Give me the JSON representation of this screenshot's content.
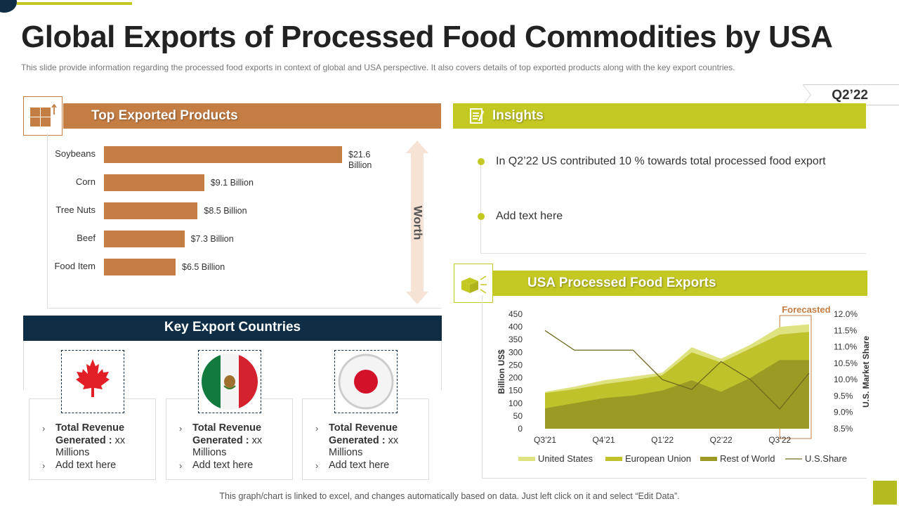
{
  "title": "Global Exports of Processed Food Commodities by USA",
  "subtitle": "This slide provide  information  regarding  the processed food exports in context of global and USA perspective. It also covers details of top exported products along with the key export countries.",
  "quarter": "Q2’22",
  "products": {
    "heading": "Top Exported Products",
    "worth_label": "Worth",
    "items": [
      {
        "name": "Soybeans",
        "value": 21.6,
        "label": "$21.6 Billion"
      },
      {
        "name": "Corn",
        "value": 9.1,
        "label": "$9.1 Billion"
      },
      {
        "name": "Tree Nuts",
        "value": 8.5,
        "label": "$8.5  Billion"
      },
      {
        "name": "Beef",
        "value": 7.3,
        "label": "$7.3 Billion"
      },
      {
        "name": "Food Item",
        "value": 6.5,
        "label": "$6.5 Billion"
      }
    ]
  },
  "insights": {
    "heading": "Insights",
    "items": [
      "In Q2’22 US contributed  10 % towards total processed food export",
      "Add text here"
    ]
  },
  "exports": {
    "heading": "USA Processed Food Exports",
    "forecast_label": "Forecasted"
  },
  "countries": {
    "heading": "Key Export Countries",
    "cards": [
      {
        "country": "Canada",
        "line1": "Total Revenue",
        "line2": "Generated :",
        "line2b": " xx",
        "line3": "Millions",
        "line4": "Add text here"
      },
      {
        "country": "Mexico",
        "line1": "Total Revenue",
        "line2": "Generated :",
        "line2b": " xx",
        "line3": "Millions",
        "line4": "Add text here"
      },
      {
        "country": "Japan",
        "line1": "Total Revenue",
        "line2": "Generated :",
        "line2b": " xx",
        "line3": "Millions",
        "line4": "Add text here"
      }
    ]
  },
  "footer": "This graph/chart is linked to excel, and changes automatically based on data. Just left click on it and select “Edit Data”.",
  "colors": {
    "orange": "#c47d43",
    "lime": "#c4c823",
    "navy": "#0f2e45",
    "us": "#dfe281",
    "eu": "#c0c22b",
    "row": "#9a9a25",
    "share": "#6e6a1e"
  },
  "chart_data": [
    {
      "type": "bar",
      "title": "Top Exported Products",
      "orientation": "horizontal",
      "categories": [
        "Soybeans",
        "Corn",
        "Tree Nuts",
        "Beef",
        "Food Item"
      ],
      "values": [
        21.6,
        9.1,
        8.5,
        7.3,
        6.5
      ],
      "unit": "Billion $",
      "xlim": [
        0,
        21.6
      ]
    },
    {
      "type": "area",
      "title": "USA Processed Food Exports",
      "stacked": false,
      "x": [
        0,
        1,
        2,
        3,
        4,
        5,
        6,
        7,
        8,
        9
      ],
      "tick_labels": [
        "Q3’21",
        "Q4’21",
        "Q1’22",
        "Q2’22",
        "Q3’22"
      ],
      "tick_positions": [
        0,
        2,
        4,
        6,
        8
      ],
      "ylabel": "Billion US$",
      "ylim": [
        0,
        450
      ],
      "yticks": [
        0,
        50,
        100,
        150,
        200,
        250,
        300,
        350,
        400,
        450
      ],
      "y2label": "U.S. Market Share",
      "y2lim": [
        8.5,
        12.0
      ],
      "y2ticks": [
        "8.5%",
        "9.0%",
        "9.5%",
        "10.0%",
        "10.5%",
        "11.0%",
        "11.5%",
        "12.0%"
      ],
      "series": [
        {
          "name": "United States",
          "values": [
            145,
            165,
            190,
            205,
            220,
            320,
            275,
            330,
            400,
            410
          ]
        },
        {
          "name": "European Union",
          "values": [
            140,
            155,
            175,
            190,
            210,
            300,
            260,
            315,
            370,
            380
          ]
        },
        {
          "name": "Rest of World",
          "values": [
            80,
            100,
            120,
            130,
            150,
            190,
            145,
            200,
            270,
            270
          ]
        },
        {
          "name": "U.S.Share",
          "axis": "right",
          "values": [
            11.5,
            10.9,
            10.9,
            10.9,
            10.0,
            9.7,
            10.55,
            10.0,
            9.1,
            10.2
          ]
        }
      ],
      "forecast_from_index": 8,
      "legend": [
        "United States",
        "European Union",
        "Rest of World",
        "U.S.Share"
      ]
    }
  ]
}
